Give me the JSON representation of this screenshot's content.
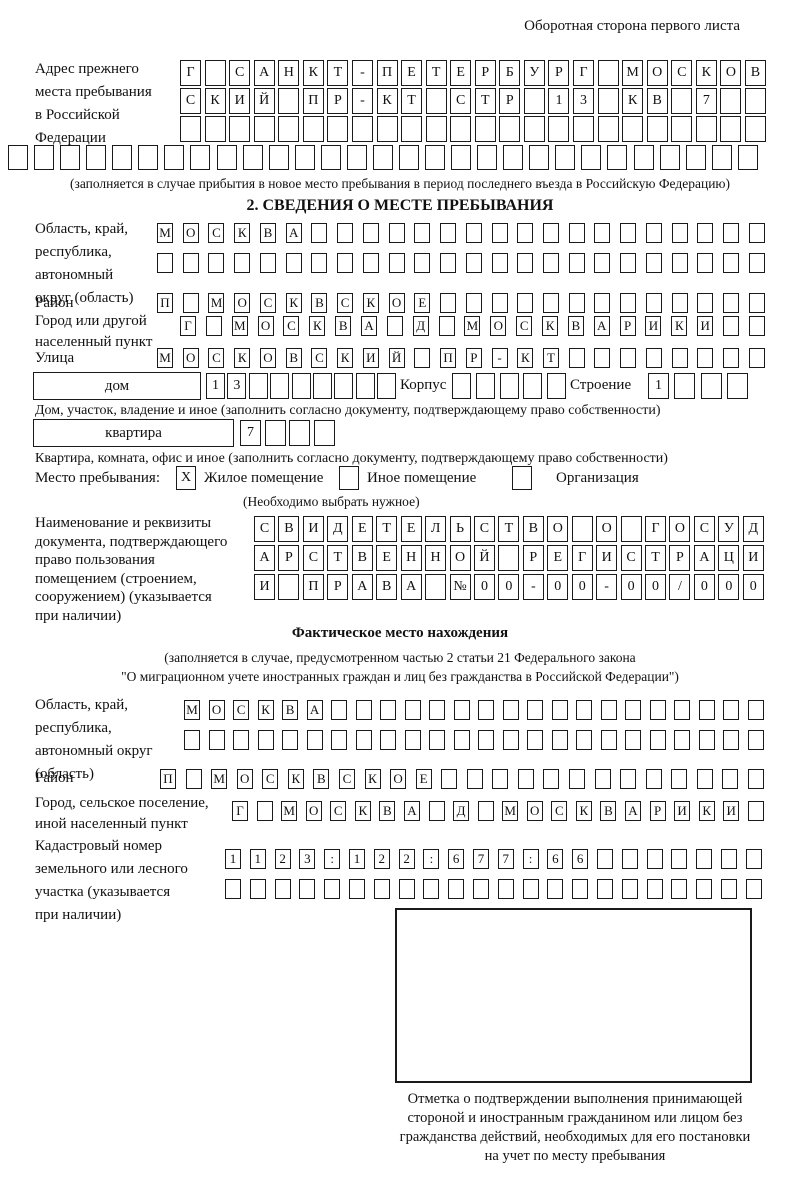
{
  "page_header": "Оборотная сторона первого листа",
  "prev_address": {
    "label": "Адрес прежнего\nместа пребывания\nв Российской\nФедерации",
    "rows": [
      [
        "Г",
        "",
        "С",
        "А",
        "Н",
        "К",
        "Т",
        "-",
        "П",
        "Е",
        "Т",
        "Е",
        "Р",
        "Б",
        "У",
        "Р",
        "Г",
        "",
        "М",
        "О",
        "С",
        "К",
        "О",
        "В"
      ],
      [
        "С",
        "К",
        "И",
        "Й",
        "",
        "П",
        "Р",
        "-",
        "К",
        "Т",
        "",
        "С",
        "Т",
        "Р",
        "",
        "1",
        "3",
        "",
        "К",
        "В",
        "",
        "7",
        "",
        ""
      ],
      [
        "",
        "",
        "",
        "",
        "",
        "",
        "",
        "",
        "",
        "",
        "",
        "",
        "",
        "",
        "",
        "",
        "",
        "",
        "",
        "",
        "",
        "",
        "",
        ""
      ],
      [
        "",
        "",
        "",
        "",
        "",
        "",
        "",
        "",
        "",
        "",
        "",
        "",
        "",
        "",
        "",
        "",
        "",
        "",
        "",
        "",
        "",
        "",
        "",
        "",
        "",
        "",
        "",
        "",
        ""
      ]
    ],
    "note": "(заполняется в случае прибытия в новое место пребывания в период последнего въезда в Российскую Федерацию)"
  },
  "section2": {
    "title": "2. СВЕДЕНИЯ О МЕСТЕ ПРЕБЫВАНИЯ",
    "region": {
      "label": "Область, край,\nреспублика,\nавтономный\nокруг (область)",
      "rows": [
        [
          "М",
          "О",
          "С",
          "К",
          "В",
          "А",
          "",
          "",
          "",
          "",
          "",
          "",
          "",
          "",
          "",
          "",
          "",
          "",
          "",
          "",
          "",
          "",
          "",
          ""
        ],
        [
          "",
          "",
          "",
          "",
          "",
          "",
          "",
          "",
          "",
          "",
          "",
          "",
          "",
          "",
          "",
          "",
          "",
          "",
          "",
          "",
          "",
          "",
          "",
          ""
        ]
      ]
    },
    "district": {
      "label": "Район",
      "row": [
        "П",
        "",
        "М",
        "О",
        "С",
        "К",
        "В",
        "С",
        "К",
        "О",
        "Е",
        "",
        "",
        "",
        "",
        "",
        "",
        "",
        "",
        "",
        "",
        "",
        "",
        ""
      ]
    },
    "city": {
      "label": "Город или другой\nнаселенный пункт",
      "row": [
        "Г",
        "",
        "М",
        "О",
        "С",
        "К",
        "В",
        "А",
        "",
        "Д",
        "",
        "М",
        "О",
        "С",
        "К",
        "В",
        "А",
        "Р",
        "И",
        "К",
        "И",
        "",
        ""
      ]
    },
    "street": {
      "label": "Улица",
      "row": [
        "М",
        "О",
        "С",
        "К",
        "О",
        "В",
        "С",
        "К",
        "И",
        "Й",
        "",
        "П",
        "Р",
        "-",
        "К",
        "Т",
        "",
        "",
        "",
        "",
        "",
        "",
        "",
        ""
      ]
    },
    "house": {
      "box_label": "дом",
      "num_cells": [
        "1",
        "3",
        "",
        "",
        "",
        "",
        "",
        "",
        ""
      ],
      "korpus_label": "Корпус",
      "korpus_cells": [
        "",
        "",
        "",
        "",
        ""
      ],
      "stroenie_label": "Строение",
      "stroenie_cells": [
        "1",
        "",
        "",
        ""
      ]
    },
    "house_note": "Дом, участок, владение и иное (заполнить согласно документу, подтверждающему право собственности)",
    "apartment": {
      "box_label": "квартира",
      "cells": [
        "7",
        "",
        "",
        ""
      ]
    },
    "apartment_note": "Квартира, комната, офис и иное (заполнить согласно документу, подтверждающему право собственности)",
    "stay_type": {
      "label": "Место пребывания:",
      "options": [
        {
          "label": "Жилое помещение",
          "mark": "X"
        },
        {
          "label": "Иное помещение",
          "mark": ""
        },
        {
          "label": "Организация",
          "mark": ""
        }
      ],
      "note": "(Необходимо выбрать нужное)"
    },
    "document": {
      "label": "Наименование и реквизиты\nдокумента, подтверждающего\nправо пользования\nпомещением (строением,\nсооружением) (указывается\nпри наличии)",
      "rows": [
        [
          "С",
          "В",
          "И",
          "Д",
          "Е",
          "Т",
          "Е",
          "Л",
          "Ь",
          "С",
          "Т",
          "В",
          "О",
          "",
          "О",
          "",
          "Г",
          "О",
          "С",
          "У",
          "Д"
        ],
        [
          "А",
          "Р",
          "С",
          "Т",
          "В",
          "Е",
          "Н",
          "Н",
          "О",
          "Й",
          "",
          "Р",
          "Е",
          "Г",
          "И",
          "С",
          "Т",
          "Р",
          "А",
          "Ц",
          "И"
        ],
        [
          "И",
          "",
          "П",
          "Р",
          "А",
          "В",
          "А",
          "",
          "№",
          "0",
          "0",
          "-",
          "0",
          "0",
          "-",
          "0",
          "0",
          "/",
          "0",
          "0",
          "0"
        ]
      ]
    }
  },
  "actual": {
    "title": "Фактическое место нахождения",
    "note1": "(заполняется в случае, предусмотренном частью 2 статьи 21 Федерального закона",
    "note2": "\"О миграционном учете иностранных граждан и лиц без гражданства в Российской Федерации\")",
    "region": {
      "label": "Область, край,\nреспублика,\nавтономный округ\n(область)",
      "rows": [
        [
          "М",
          "О",
          "С",
          "К",
          "В",
          "А",
          "",
          "",
          "",
          "",
          "",
          "",
          "",
          "",
          "",
          "",
          "",
          "",
          "",
          "",
          "",
          "",
          "",
          ""
        ],
        [
          "",
          "",
          "",
          "",
          "",
          "",
          "",
          "",
          "",
          "",
          "",
          "",
          "",
          "",
          "",
          "",
          "",
          "",
          "",
          "",
          "",
          "",
          "",
          ""
        ]
      ]
    },
    "district": {
      "label": "Район",
      "row": [
        "П",
        "",
        "М",
        "О",
        "С",
        "К",
        "В",
        "С",
        "К",
        "О",
        "Е",
        "",
        "",
        "",
        "",
        "",
        "",
        "",
        "",
        "",
        "",
        "",
        "",
        ""
      ]
    },
    "city": {
      "label": "Город, сельское поселение,\nиной населенный пункт",
      "row": [
        "Г",
        "",
        "М",
        "О",
        "С",
        "К",
        "В",
        "А",
        "",
        "Д",
        "",
        "М",
        "О",
        "С",
        "К",
        "В",
        "А",
        "Р",
        "И",
        "К",
        "И",
        ""
      ]
    },
    "cadastral": {
      "label": "Кадастровый номер\nземельного или лесного\nучастка (указывается\nпри наличии)",
      "rows": [
        [
          "1",
          "1",
          "2",
          "3",
          ":",
          "1",
          "2",
          "2",
          ":",
          "6",
          "7",
          "7",
          ":",
          "6",
          "6",
          "",
          "",
          "",
          "",
          "",
          "",
          ""
        ],
        [
          "",
          "",
          "",
          "",
          "",
          "",
          "",
          "",
          "",
          "",
          "",
          "",
          "",
          "",
          "",
          "",
          "",
          "",
          "",
          "",
          "",
          ""
        ]
      ]
    },
    "stamp_note": "Отметка о подтверждении выполнения принимающей\nстороной и иностранным гражданином или лицом без\nгражданства действий, необходимых для его постановки\nна учет по месту пребывания"
  }
}
